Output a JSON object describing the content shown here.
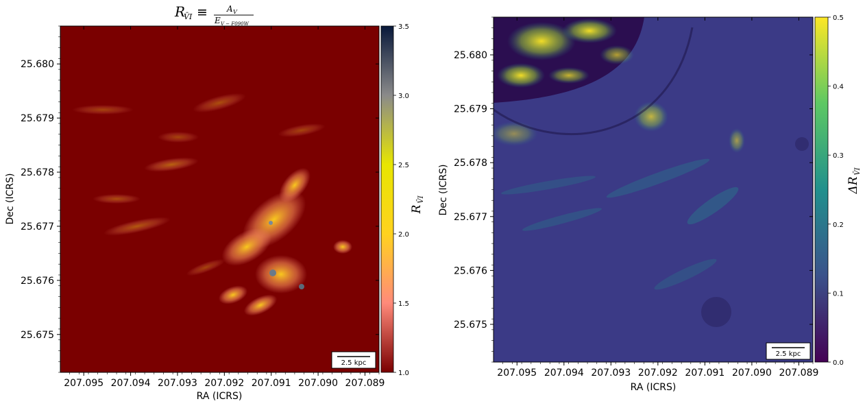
{
  "chart_data": [
    {
      "type": "heatmap",
      "title": "R_{V̄I} ≡ A_V / E_{V − F090W}",
      "title_parts": {
        "lhs": "R",
        "lhs_sub": "V̄I",
        "equiv": "≡",
        "num": "A",
        "num_sub": "V",
        "den": "E",
        "den_sub": "V − F090W"
      },
      "xlabel": "RA (ICRS)",
      "ylabel": "Dec (ICRS)",
      "x_ticks": [
        "207.095",
        "207.094",
        "207.093",
        "207.092",
        "207.091",
        "207.090",
        "207.089"
      ],
      "y_ticks": [
        "25.675",
        "25.676",
        "25.677",
        "25.678",
        "25.679",
        "25.680"
      ],
      "xlim": [
        207.0955,
        207.0887
      ],
      "ylim": [
        25.6743,
        25.6807
      ],
      "colorbar": {
        "label": "R",
        "label_sub": "V̄I",
        "range": [
          1.0,
          3.5
        ],
        "ticks": [
          "1.0",
          "1.5",
          "2.0",
          "2.5",
          "3.0",
          "3.5"
        ],
        "colormap": "afmhot-like",
        "stops": [
          "#7a0000",
          "#ff8a7a",
          "#ffd21f",
          "#e8e600",
          "#8a8a8a",
          "#08183a"
        ]
      },
      "scale_bar": "2.5 kpc",
      "background_color": "#7a0000",
      "grid": false
    },
    {
      "type": "heatmap",
      "title": "",
      "xlabel": "RA (ICRS)",
      "ylabel": "Dec (ICRS)",
      "x_ticks": [
        "207.095",
        "207.094",
        "207.093",
        "207.092",
        "207.091",
        "207.090",
        "207.089"
      ],
      "y_ticks": [
        "25.675",
        "25.676",
        "25.677",
        "25.678",
        "25.679",
        "25.680"
      ],
      "xlim": [
        207.0955,
        207.0887
      ],
      "ylim": [
        25.6743,
        25.6807
      ],
      "colorbar": {
        "label": "ΔR",
        "label_sub": "V̄I",
        "range": [
          0.0,
          0.5
        ],
        "ticks": [
          "0.0",
          "0.1",
          "0.2",
          "0.3",
          "0.4",
          "0.5"
        ],
        "colormap": "viridis",
        "stops": [
          "#440154",
          "#3b528b",
          "#21908d",
          "#5dc863",
          "#fde725"
        ]
      },
      "scale_bar": "2.5 kpc",
      "background_color": "#3b3a86",
      "grid": false
    }
  ]
}
